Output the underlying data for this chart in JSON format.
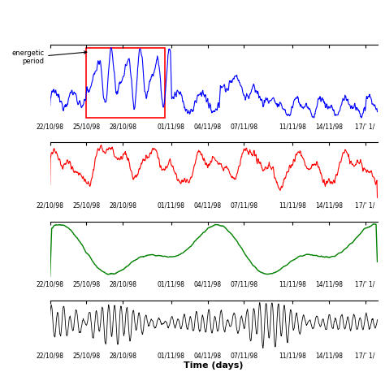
{
  "xlabel": "Time (days)",
  "x_tick_labels": [
    "22/10/98",
    "25/10/98",
    "28/10/98",
    "01/11/98",
    "04/11/98",
    "07/11/98",
    "11/11/98",
    "14/11/98",
    "17/’ 1/"
  ],
  "background_color": "#ffffff",
  "line_colors": [
    "blue",
    "red",
    "green",
    "black"
  ],
  "annotation_text": "energetic\nperiod",
  "fig_width": 4.74,
  "fig_height": 4.74,
  "dpi": 100
}
